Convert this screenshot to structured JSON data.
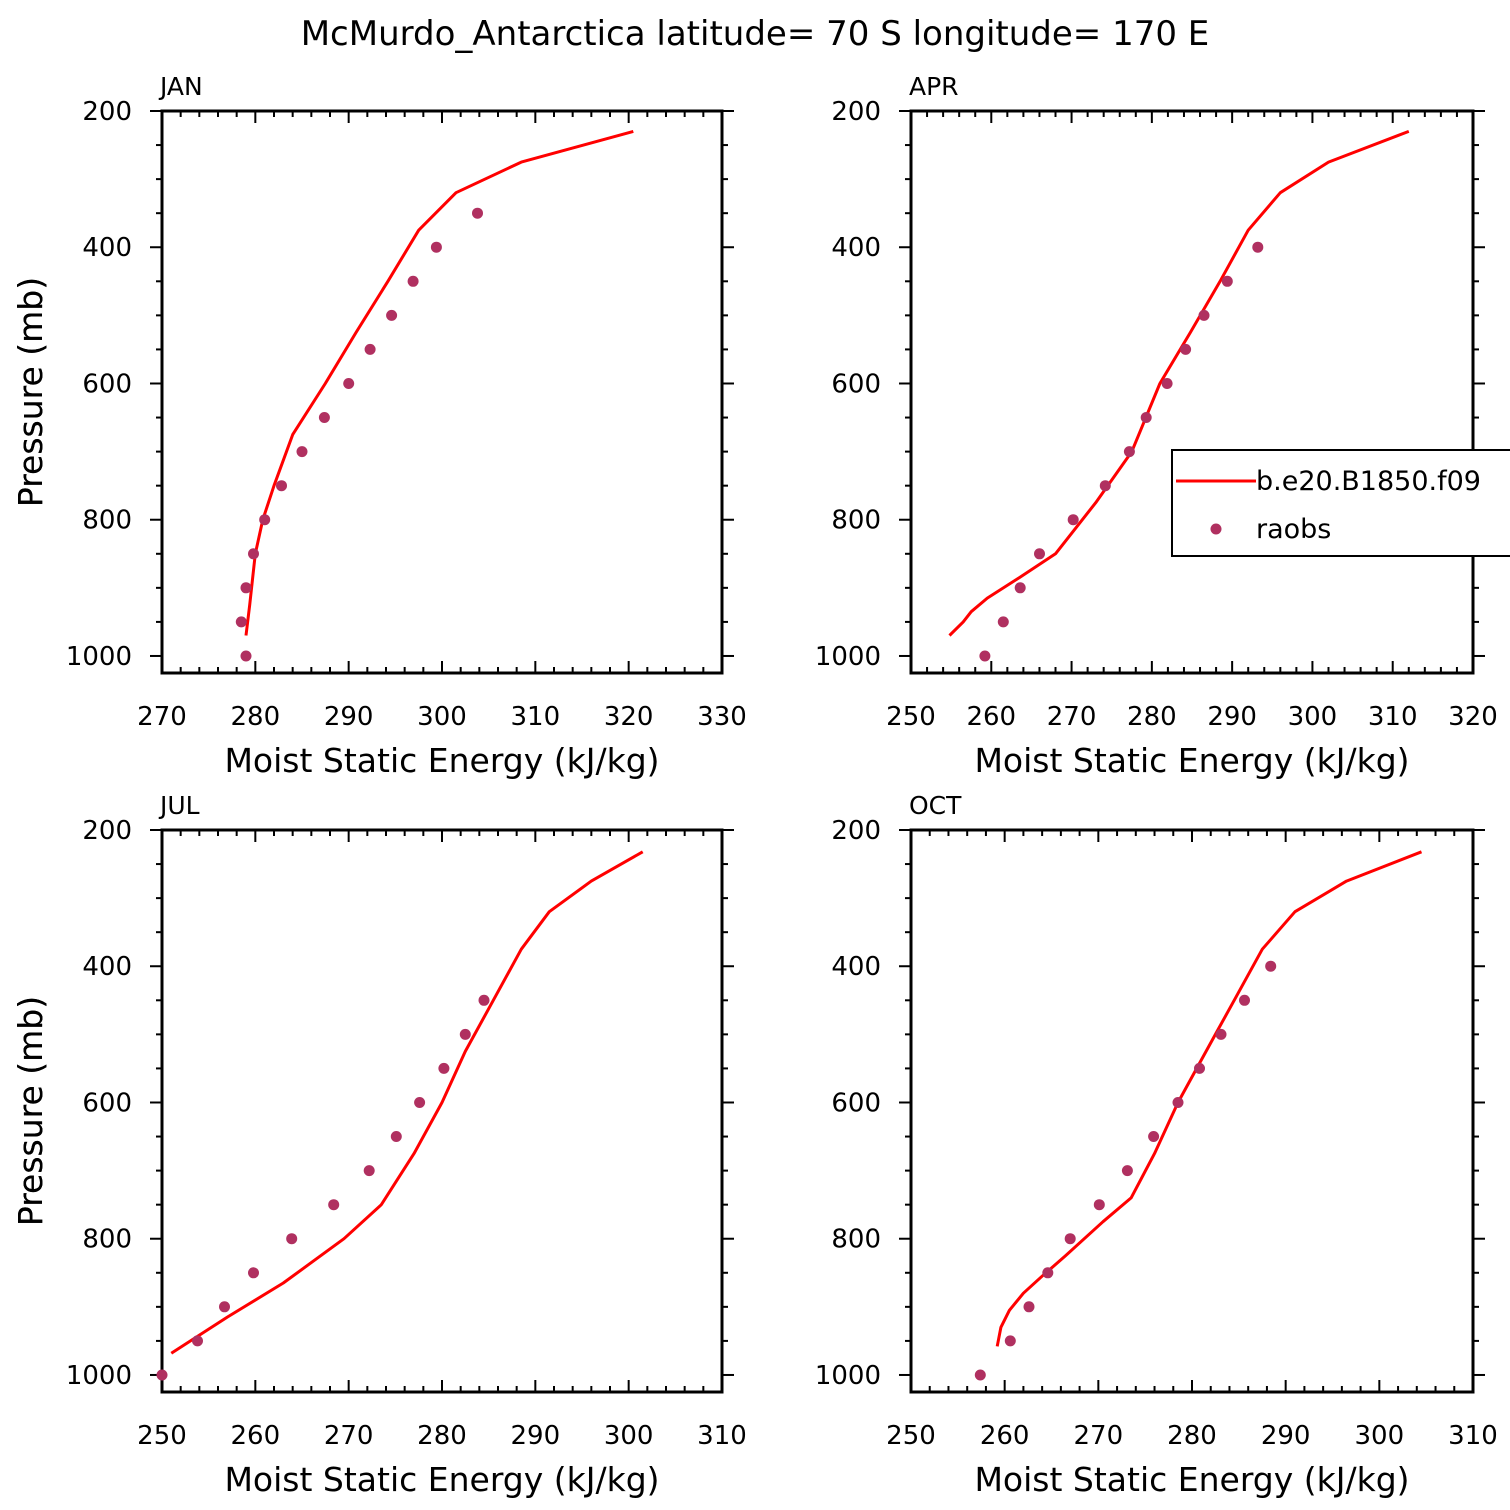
{
  "title": "McMurdo_Antarctica  latitude= 70 S longitude= 170 E",
  "colors": {
    "model": "#ff0000",
    "obs": "#b03060"
  },
  "legend": {
    "model_label": "b.e20.B1850.f09",
    "obs_label": "raobs"
  },
  "chart_data": [
    {
      "type": "line",
      "panel": "JAN",
      "xlabel": "Moist Static Energy (kJ/kg)",
      "ylabel": "Pressure (mb)",
      "xlim": [
        270,
        330
      ],
      "ylim": [
        1025,
        200
      ],
      "xticks": [
        270,
        280,
        290,
        300,
        310,
        320,
        330
      ],
      "yticks": [
        200,
        400,
        600,
        800,
        1000
      ],
      "grid": false,
      "series": [
        {
          "name": "b.e20.B1850.f09",
          "kind": "line",
          "x": [
            279.0,
            279.4,
            280.0,
            280.8,
            282.0,
            284.0,
            287.5,
            290.8,
            294.2,
            297.5,
            301.5,
            308.5,
            320.5
          ],
          "y": [
            970,
            925,
            850,
            800,
            750,
            675,
            600,
            525,
            450,
            375,
            320,
            275,
            230
          ]
        },
        {
          "name": "raobs",
          "kind": "scatter",
          "x": [
            279.0,
            278.5,
            279.0,
            279.8,
            281.0,
            282.8,
            285.0,
            287.4,
            290.0,
            292.3,
            294.6,
            296.9,
            299.4,
            303.8
          ],
          "y": [
            1000,
            950,
            900,
            850,
            800,
            750,
            700,
            650,
            600,
            550,
            500,
            450,
            400,
            350
          ]
        }
      ]
    },
    {
      "type": "line",
      "panel": "APR",
      "xlabel": "Moist Static Energy (kJ/kg)",
      "ylabel": "Pressure (mb)",
      "xlim": [
        250,
        320
      ],
      "ylim": [
        1025,
        200
      ],
      "xticks": [
        250,
        260,
        270,
        280,
        290,
        300,
        310,
        320
      ],
      "yticks": [
        200,
        400,
        600,
        800,
        1000
      ],
      "grid": false,
      "legend": "right",
      "series": [
        {
          "name": "b.e20.B1850.f09",
          "kind": "line",
          "x": [
            254.8,
            256.5,
            257.5,
            259.5,
            263.5,
            268.0,
            273.0,
            277.5,
            281.0,
            284.8,
            288.5,
            292.0,
            296.0,
            302.0,
            312.0
          ],
          "y": [
            970,
            950,
            935,
            915,
            885,
            850,
            775,
            700,
            600,
            525,
            450,
            375,
            320,
            275,
            230
          ]
        },
        {
          "name": "raobs",
          "kind": "scatter",
          "x": [
            259.2,
            261.5,
            263.6,
            266.0,
            270.2,
            274.2,
            277.2,
            279.3,
            281.9,
            284.2,
            286.5,
            289.4,
            293.2
          ],
          "y": [
            1000,
            950,
            900,
            850,
            800,
            750,
            700,
            650,
            600,
            550,
            500,
            450,
            400
          ]
        }
      ]
    },
    {
      "type": "line",
      "panel": "JUL",
      "xlabel": "Moist Static Energy (kJ/kg)",
      "ylabel": "Pressure (mb)",
      "xlim": [
        250,
        310
      ],
      "ylim": [
        1025,
        200
      ],
      "xticks": [
        250,
        260,
        270,
        280,
        290,
        300,
        310
      ],
      "yticks": [
        200,
        400,
        600,
        800,
        1000
      ],
      "grid": false,
      "series": [
        {
          "name": "b.e20.B1850.f09",
          "kind": "line",
          "x": [
            251.0,
            257.0,
            263.0,
            266.0,
            269.5,
            273.5,
            277.0,
            280.0,
            282.5,
            285.5,
            288.5,
            291.5,
            296.0,
            301.5
          ],
          "y": [
            968,
            915,
            865,
            835,
            800,
            750,
            675,
            600,
            525,
            450,
            375,
            320,
            275,
            232
          ]
        },
        {
          "name": "raobs",
          "kind": "scatter",
          "x": [
            250.0,
            253.8,
            256.7,
            259.8,
            263.9,
            268.4,
            272.2,
            275.1,
            277.6,
            280.2,
            282.5,
            284.5
          ],
          "y": [
            1000,
            950,
            900,
            850,
            800,
            750,
            700,
            650,
            600,
            550,
            500,
            450
          ]
        }
      ]
    },
    {
      "type": "line",
      "panel": "OCT",
      "xlabel": "Moist Static Energy (kJ/kg)",
      "ylabel": "Pressure (mb)",
      "xlim": [
        250,
        310
      ],
      "ylim": [
        1025,
        200
      ],
      "xticks": [
        250,
        260,
        270,
        280,
        290,
        300,
        310
      ],
      "yticks": [
        200,
        400,
        600,
        800,
        1000
      ],
      "grid": false,
      "series": [
        {
          "name": "b.e20.B1850.f09",
          "kind": "line",
          "x": [
            259.2,
            259.6,
            260.5,
            262.0,
            264.0,
            266.5,
            270.5,
            273.5,
            276.0,
            278.5,
            280.5,
            282.5,
            284.5,
            287.5,
            291.0,
            296.5,
            304.5
          ],
          "y": [
            958,
            930,
            905,
            880,
            855,
            825,
            775,
            740,
            675,
            600,
            550,
            500,
            450,
            375,
            320,
            275,
            232
          ]
        },
        {
          "name": "raobs",
          "kind": "scatter",
          "x": [
            257.4,
            260.6,
            262.6,
            264.6,
            267.0,
            270.1,
            273.1,
            275.9,
            278.5,
            280.8,
            283.1,
            285.6,
            288.4
          ],
          "y": [
            1000,
            950,
            900,
            850,
            800,
            750,
            700,
            650,
            600,
            550,
            500,
            450,
            400
          ]
        }
      ]
    }
  ]
}
